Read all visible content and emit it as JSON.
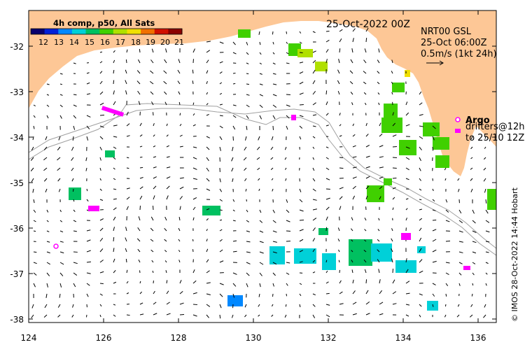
{
  "map": {
    "date_label": "25-Oct-2022 00Z",
    "product_title": "NRT00 GSL",
    "product_time": "25-Oct 06:00Z",
    "scale_label": "0.5m/s (1kt 24h)",
    "credit": "© IMOS 28-Oct-2022 14:44 Hobart",
    "colorbar": {
      "title": "4h comp, p50, All Sats",
      "tick_labels": [
        "12",
        "13",
        "14",
        "15",
        "16",
        "17",
        "18",
        "19",
        "20",
        "21"
      ],
      "colors": [
        "#08006e",
        "#0020d8",
        "#0088ff",
        "#00d0d8",
        "#00c060",
        "#40d000",
        "#b0e000",
        "#f0e000",
        "#f07000",
        "#d01000",
        "#8a0000"
      ]
    },
    "legend": {
      "argo_label": "Argo",
      "drifters_line1": "drifters@12h",
      "drifters_line2": "to 25/10 12Z",
      "argo_color": "#ff00ff"
    },
    "axes": {
      "lon_ticks": [
        "124",
        "126",
        "128",
        "130",
        "132",
        "134",
        "136"
      ],
      "lat_ticks": [
        "-32",
        "-33",
        "-34",
        "-35",
        "-36",
        "-37",
        "-38"
      ]
    },
    "colors": {
      "land": "#fdc796",
      "bathymetry_contour": "#a0a0a0"
    }
  }
}
